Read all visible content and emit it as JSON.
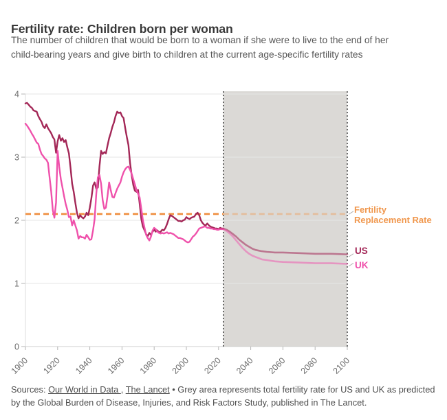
{
  "header": {
    "title": "Fertility rate: Children born per woman",
    "subtitle": "The number of children that would be born to a woman if she were to live to the end of her child-bearing years and give birth to children at the current age-specific fertility rates"
  },
  "footer": {
    "prefix": "Sources: ",
    "link1": "Our World in Data ",
    "separator": ", ",
    "link2": "The Lancet",
    "note": " • Grey area represents total fertility rate for US and UK as predicted by the Global Burden of Disease, Injuries, and Risk Factors Study, published in The Lancet."
  },
  "labels": {
    "replacement_line1": "Fertility",
    "replacement_line2": "Replacement Rate",
    "us": "US",
    "uk": "UK"
  },
  "colors": {
    "us": "#a32757",
    "uk": "#ef51ab",
    "replacement": "#f0974d",
    "projection_fill": "#dbd9d6",
    "boundary_dots": "#4c4c4c",
    "grid": "#e6e6e6",
    "axis": "#cfcfcf",
    "tick": "#b5b5b5",
    "axis_text": "#6b6b6b"
  },
  "chart_data": {
    "type": "line",
    "title": "Fertility rate: Children born per woman",
    "xlabel": "",
    "ylabel": "",
    "x_range": [
      1900,
      2100
    ],
    "y_range": [
      0,
      4
    ],
    "x_ticks": [
      1900,
      1920,
      1940,
      1960,
      1980,
      2000,
      2020,
      2040,
      2060,
      2080,
      2100
    ],
    "y_ticks": [
      0,
      1,
      2,
      3,
      4
    ],
    "grid": true,
    "legend_position": "right",
    "replacement_line": {
      "value": 2.1,
      "color": "#f0974d"
    },
    "projection_region": {
      "start": 2023,
      "end": 2100
    },
    "series": [
      {
        "name": "US",
        "color": "#a32757",
        "historical": [
          [
            1900,
            3.85
          ],
          [
            1901,
            3.86
          ],
          [
            1902,
            3.83
          ],
          [
            1903,
            3.8
          ],
          [
            1904,
            3.78
          ],
          [
            1905,
            3.74
          ],
          [
            1906,
            3.73
          ],
          [
            1907,
            3.72
          ],
          [
            1908,
            3.65
          ],
          [
            1909,
            3.6
          ],
          [
            1910,
            3.56
          ],
          [
            1911,
            3.49
          ],
          [
            1912,
            3.46
          ],
          [
            1913,
            3.52
          ],
          [
            1914,
            3.46
          ],
          [
            1915,
            3.42
          ],
          [
            1916,
            3.38
          ],
          [
            1917,
            3.32
          ],
          [
            1918,
            3.28
          ],
          [
            1919,
            3.07
          ],
          [
            1920,
            3.25
          ],
          [
            1921,
            3.35
          ],
          [
            1922,
            3.26
          ],
          [
            1923,
            3.3
          ],
          [
            1924,
            3.24
          ],
          [
            1925,
            3.27
          ],
          [
            1926,
            3.16
          ],
          [
            1927,
            3.06
          ],
          [
            1928,
            2.84
          ],
          [
            1929,
            2.58
          ],
          [
            1930,
            2.45
          ],
          [
            1931,
            2.28
          ],
          [
            1932,
            2.12
          ],
          [
            1933,
            2.03
          ],
          [
            1934,
            2.08
          ],
          [
            1935,
            2.05
          ],
          [
            1936,
            2.03
          ],
          [
            1937,
            2.06
          ],
          [
            1938,
            2.12
          ],
          [
            1939,
            2.08
          ],
          [
            1940,
            2.2
          ],
          [
            1941,
            2.35
          ],
          [
            1942,
            2.55
          ],
          [
            1943,
            2.6
          ],
          [
            1944,
            2.5
          ],
          [
            1945,
            2.52
          ],
          [
            1946,
            2.85
          ],
          [
            1947,
            3.1
          ],
          [
            1948,
            3.05
          ],
          [
            1949,
            3.08
          ],
          [
            1950,
            3.06
          ],
          [
            1951,
            3.18
          ],
          [
            1952,
            3.3
          ],
          [
            1953,
            3.38
          ],
          [
            1954,
            3.48
          ],
          [
            1955,
            3.55
          ],
          [
            1956,
            3.65
          ],
          [
            1957,
            3.72
          ],
          [
            1958,
            3.7
          ],
          [
            1959,
            3.71
          ],
          [
            1960,
            3.65
          ],
          [
            1961,
            3.62
          ],
          [
            1962,
            3.46
          ],
          [
            1963,
            3.32
          ],
          [
            1964,
            3.19
          ],
          [
            1965,
            2.91
          ],
          [
            1966,
            2.72
          ],
          [
            1967,
            2.56
          ],
          [
            1968,
            2.47
          ],
          [
            1969,
            2.45
          ],
          [
            1970,
            2.48
          ],
          [
            1971,
            2.26
          ],
          [
            1972,
            2.02
          ],
          [
            1973,
            1.9
          ],
          [
            1974,
            1.84
          ],
          [
            1975,
            1.78
          ],
          [
            1976,
            1.75
          ],
          [
            1977,
            1.8
          ],
          [
            1978,
            1.77
          ],
          [
            1979,
            1.82
          ],
          [
            1980,
            1.85
          ],
          [
            1981,
            1.82
          ],
          [
            1982,
            1.84
          ],
          [
            1983,
            1.81
          ],
          [
            1984,
            1.82
          ],
          [
            1985,
            1.85
          ],
          [
            1986,
            1.84
          ],
          [
            1987,
            1.88
          ],
          [
            1988,
            1.94
          ],
          [
            1989,
            2.02
          ],
          [
            1990,
            2.08
          ],
          [
            1991,
            2.07
          ],
          [
            1992,
            2.05
          ],
          [
            1993,
            2.03
          ],
          [
            1994,
            2.01
          ],
          [
            1995,
            1.99
          ],
          [
            1996,
            1.99
          ],
          [
            1997,
            1.98
          ],
          [
            1998,
            2.0
          ],
          [
            1999,
            2.01
          ],
          [
            2000,
            2.05
          ],
          [
            2001,
            2.03
          ],
          [
            2002,
            2.02
          ],
          [
            2003,
            2.04
          ],
          [
            2004,
            2.05
          ],
          [
            2005,
            2.06
          ],
          [
            2006,
            2.1
          ],
          [
            2007,
            2.12
          ],
          [
            2008,
            2.08
          ],
          [
            2009,
            2.0
          ],
          [
            2010,
            1.96
          ],
          [
            2011,
            1.93
          ],
          [
            2012,
            1.92
          ],
          [
            2013,
            1.95
          ],
          [
            2014,
            1.92
          ],
          [
            2015,
            1.9
          ],
          [
            2016,
            1.89
          ],
          [
            2017,
            1.88
          ],
          [
            2018,
            1.87
          ],
          [
            2019,
            1.87
          ],
          [
            2020,
            1.86
          ],
          [
            2021,
            1.88
          ],
          [
            2022,
            1.87
          ],
          [
            2023,
            1.87
          ]
        ],
        "projection": [
          [
            2023,
            1.87
          ],
          [
            2025,
            1.85
          ],
          [
            2027,
            1.82
          ],
          [
            2029,
            1.78
          ],
          [
            2031,
            1.74
          ],
          [
            2033,
            1.69
          ],
          [
            2035,
            1.65
          ],
          [
            2037,
            1.61
          ],
          [
            2039,
            1.58
          ],
          [
            2041,
            1.55
          ],
          [
            2043,
            1.53
          ],
          [
            2045,
            1.52
          ],
          [
            2047,
            1.51
          ],
          [
            2050,
            1.5
          ],
          [
            2055,
            1.49
          ],
          [
            2060,
            1.49
          ],
          [
            2070,
            1.48
          ],
          [
            2080,
            1.47
          ],
          [
            2090,
            1.47
          ],
          [
            2100,
            1.46
          ]
        ]
      },
      {
        "name": "UK",
        "color": "#ef51ab",
        "historical": [
          [
            1900,
            3.53
          ],
          [
            1901,
            3.5
          ],
          [
            1902,
            3.46
          ],
          [
            1903,
            3.42
          ],
          [
            1904,
            3.37
          ],
          [
            1905,
            3.33
          ],
          [
            1906,
            3.28
          ],
          [
            1907,
            3.23
          ],
          [
            1908,
            3.21
          ],
          [
            1909,
            3.12
          ],
          [
            1910,
            3.05
          ],
          [
            1911,
            3.02
          ],
          [
            1912,
            2.98
          ],
          [
            1913,
            2.96
          ],
          [
            1914,
            2.91
          ],
          [
            1915,
            2.68
          ],
          [
            1916,
            2.46
          ],
          [
            1917,
            2.16
          ],
          [
            1918,
            2.04
          ],
          [
            1919,
            2.28
          ],
          [
            1920,
            3.1
          ],
          [
            1921,
            2.85
          ],
          [
            1922,
            2.65
          ],
          [
            1923,
            2.52
          ],
          [
            1924,
            2.38
          ],
          [
            1925,
            2.26
          ],
          [
            1926,
            2.17
          ],
          [
            1927,
            2.05
          ],
          [
            1928,
            2.06
          ],
          [
            1929,
            1.92
          ],
          [
            1930,
            2.0
          ],
          [
            1931,
            1.92
          ],
          [
            1932,
            1.84
          ],
          [
            1933,
            1.71
          ],
          [
            1934,
            1.75
          ],
          [
            1935,
            1.73
          ],
          [
            1936,
            1.73
          ],
          [
            1937,
            1.71
          ],
          [
            1938,
            1.77
          ],
          [
            1939,
            1.73
          ],
          [
            1940,
            1.69
          ],
          [
            1941,
            1.7
          ],
          [
            1942,
            1.84
          ],
          [
            1943,
            2.02
          ],
          [
            1944,
            2.42
          ],
          [
            1945,
            2.68
          ],
          [
            1946,
            2.72
          ],
          [
            1947,
            2.58
          ],
          [
            1948,
            2.32
          ],
          [
            1949,
            2.18
          ],
          [
            1950,
            2.2
          ],
          [
            1951,
            2.38
          ],
          [
            1952,
            2.6
          ],
          [
            1953,
            2.48
          ],
          [
            1954,
            2.37
          ],
          [
            1955,
            2.36
          ],
          [
            1956,
            2.43
          ],
          [
            1957,
            2.5
          ],
          [
            1958,
            2.55
          ],
          [
            1959,
            2.6
          ],
          [
            1960,
            2.69
          ],
          [
            1961,
            2.76
          ],
          [
            1962,
            2.81
          ],
          [
            1963,
            2.84
          ],
          [
            1964,
            2.85
          ],
          [
            1965,
            2.8
          ],
          [
            1966,
            2.74
          ],
          [
            1967,
            2.65
          ],
          [
            1968,
            2.57
          ],
          [
            1969,
            2.48
          ],
          [
            1970,
            2.42
          ],
          [
            1971,
            2.36
          ],
          [
            1972,
            2.18
          ],
          [
            1973,
            2.0
          ],
          [
            1974,
            1.88
          ],
          [
            1975,
            1.77
          ],
          [
            1976,
            1.72
          ],
          [
            1977,
            1.68
          ],
          [
            1978,
            1.74
          ],
          [
            1979,
            1.84
          ],
          [
            1980,
            1.88
          ],
          [
            1981,
            1.86
          ],
          [
            1982,
            1.82
          ],
          [
            1983,
            1.8
          ],
          [
            1984,
            1.79
          ],
          [
            1985,
            1.8
          ],
          [
            1986,
            1.79
          ],
          [
            1987,
            1.8
          ],
          [
            1988,
            1.81
          ],
          [
            1989,
            1.79
          ],
          [
            1990,
            1.8
          ],
          [
            1991,
            1.79
          ],
          [
            1992,
            1.78
          ],
          [
            1993,
            1.76
          ],
          [
            1994,
            1.74
          ],
          [
            1995,
            1.72
          ],
          [
            1996,
            1.72
          ],
          [
            1997,
            1.71
          ],
          [
            1998,
            1.7
          ],
          [
            1999,
            1.68
          ],
          [
            2000,
            1.66
          ],
          [
            2001,
            1.65
          ],
          [
            2002,
            1.66
          ],
          [
            2003,
            1.7
          ],
          [
            2004,
            1.74
          ],
          [
            2005,
            1.76
          ],
          [
            2006,
            1.79
          ],
          [
            2007,
            1.83
          ],
          [
            2008,
            1.87
          ],
          [
            2009,
            1.88
          ],
          [
            2010,
            1.89
          ],
          [
            2011,
            1.9
          ],
          [
            2012,
            1.9
          ],
          [
            2013,
            1.88
          ],
          [
            2014,
            1.88
          ],
          [
            2015,
            1.87
          ],
          [
            2016,
            1.87
          ],
          [
            2017,
            1.86
          ],
          [
            2018,
            1.86
          ],
          [
            2019,
            1.85
          ],
          [
            2020,
            1.85
          ],
          [
            2021,
            1.86
          ],
          [
            2022,
            1.86
          ],
          [
            2023,
            1.86
          ]
        ],
        "projection": [
          [
            2023,
            1.86
          ],
          [
            2025,
            1.83
          ],
          [
            2027,
            1.79
          ],
          [
            2029,
            1.74
          ],
          [
            2031,
            1.68
          ],
          [
            2033,
            1.62
          ],
          [
            2035,
            1.56
          ],
          [
            2037,
            1.51
          ],
          [
            2039,
            1.47
          ],
          [
            2041,
            1.44
          ],
          [
            2043,
            1.42
          ],
          [
            2045,
            1.4
          ],
          [
            2047,
            1.38
          ],
          [
            2050,
            1.37
          ],
          [
            2055,
            1.35
          ],
          [
            2060,
            1.34
          ],
          [
            2070,
            1.33
          ],
          [
            2080,
            1.32
          ],
          [
            2090,
            1.32
          ],
          [
            2100,
            1.31
          ]
        ]
      }
    ]
  }
}
